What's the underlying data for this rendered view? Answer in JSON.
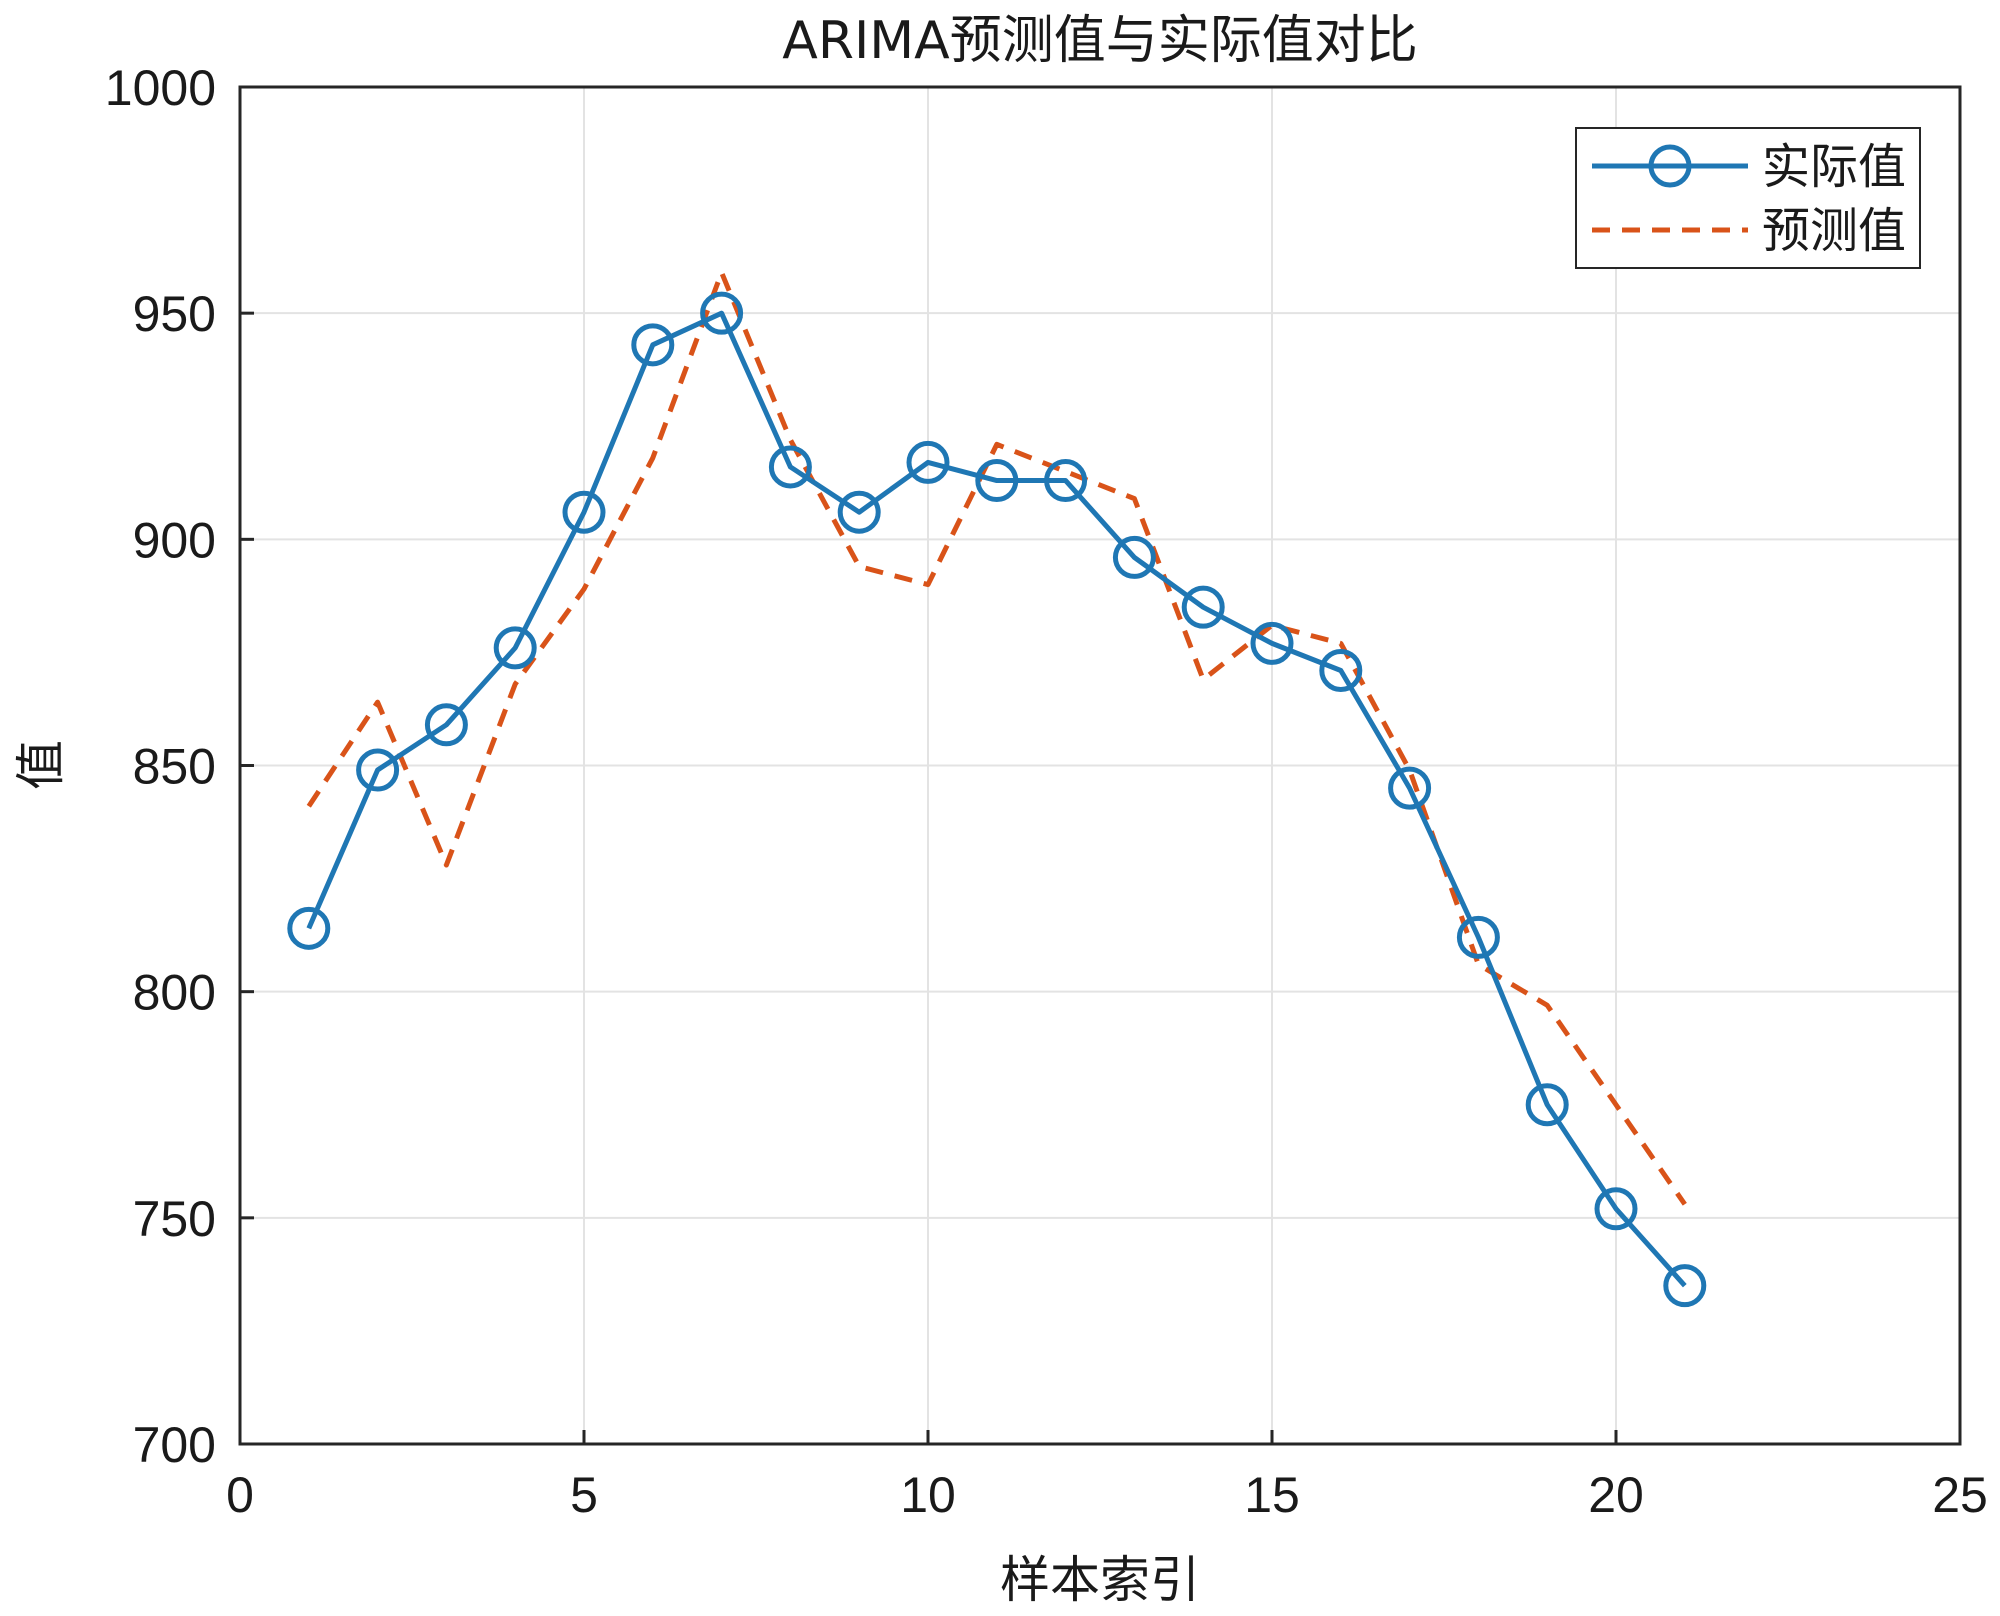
{
  "chart_data": {
    "type": "line",
    "title": "ARIMA预测值与实际值对比",
    "xlabel": "样本索引",
    "ylabel": "值",
    "xlim": [
      0,
      25
    ],
    "ylim": [
      700,
      1000
    ],
    "xticks": [
      0,
      5,
      10,
      15,
      20,
      25
    ],
    "yticks": [
      700,
      750,
      800,
      850,
      900,
      950,
      1000
    ],
    "grid": true,
    "legend_position": "top-right",
    "x": [
      1,
      2,
      3,
      4,
      5,
      6,
      7,
      8,
      9,
      10,
      11,
      12,
      13,
      14,
      15,
      16,
      17,
      18,
      19,
      20,
      21
    ],
    "series": [
      {
        "name": "实际值",
        "color": "#1f77b4",
        "style": "solid-with-circle-markers",
        "values": [
          814,
          849,
          859,
          876,
          906,
          943,
          950,
          916,
          906,
          917,
          913,
          913,
          896,
          885,
          877,
          871,
          845,
          812,
          775,
          752,
          735
        ]
      },
      {
        "name": "预测值",
        "color": "#d95319",
        "style": "dashed",
        "values": [
          841,
          864,
          828,
          868,
          889,
          918,
          959,
          922,
          894,
          890,
          921,
          915,
          909,
          869,
          881,
          877,
          849,
          806,
          797,
          775,
          753
        ]
      }
    ]
  }
}
